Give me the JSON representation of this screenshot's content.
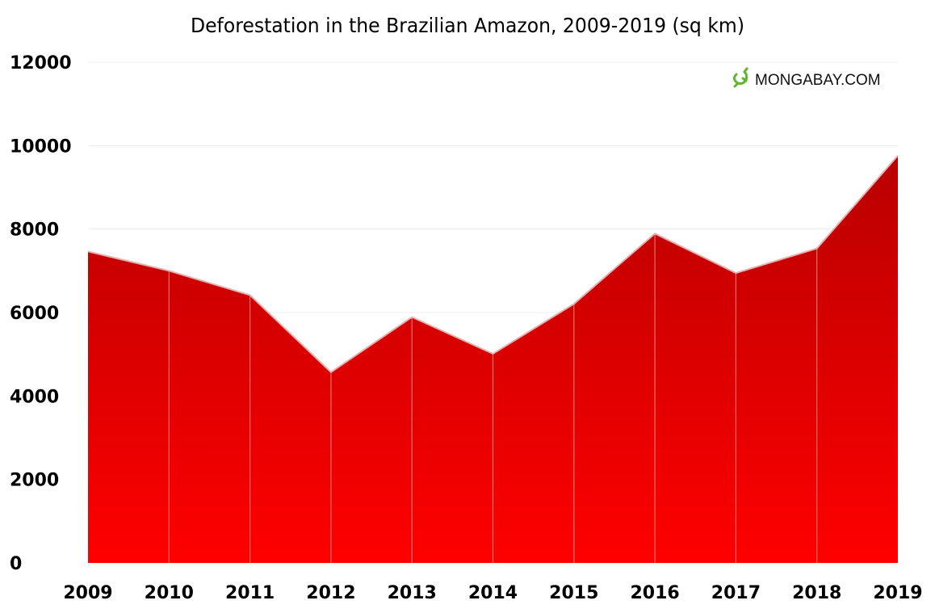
{
  "chart_data": {
    "type": "area",
    "title": "Deforestation in the Brazilian Amazon, 2009-2019 (sq km)",
    "xlabel": "",
    "ylabel": "",
    "categories": [
      "2009",
      "2010",
      "2011",
      "2012",
      "2013",
      "2014",
      "2015",
      "2016",
      "2017",
      "2018",
      "2019"
    ],
    "values": [
      7464,
      7000,
      6418,
      4571,
      5891,
      5012,
      6207,
      7893,
      6947,
      7536,
      9762
    ],
    "ylim": [
      0,
      12000
    ],
    "yticks": [
      "0",
      "2000",
      "4000",
      "6000",
      "8000",
      "10000",
      "12000"
    ],
    "grid": true,
    "fill_gradient": [
      "#b80000",
      "#ff0000"
    ],
    "watermark": "MONGABAY.COM"
  }
}
